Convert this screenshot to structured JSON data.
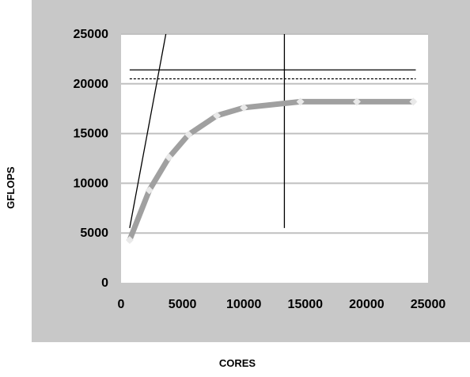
{
  "chart_data": {
    "type": "line",
    "title": "",
    "xlabel": "CORES",
    "ylabel": "GFLOPS",
    "xlim": [
      0,
      25000
    ],
    "ylim": [
      0,
      25000
    ],
    "x_ticks": [
      0,
      5000,
      10000,
      15000,
      20000,
      25000
    ],
    "y_ticks": [
      0,
      5000,
      10000,
      15000,
      20000,
      25000
    ],
    "grid": "horizontal",
    "legend": "none",
    "colors": {
      "outer_background": "#c8c8c8",
      "plot_background": "#ffffff",
      "gridline": "#c0c0c0",
      "series_line": "#a0a0a0",
      "marker": "#e9e9e9",
      "reference_line": "#000000"
    },
    "series": [
      {
        "style": "thick-gray-line-with-diamond-markers",
        "x": [
          700,
          2300,
          3900,
          5500,
          7800,
          10000,
          14600,
          19200,
          23800
        ],
        "y": [
          4300,
          9300,
          12600,
          14900,
          16800,
          17600,
          18200,
          18200,
          18200
        ]
      }
    ],
    "reference_lines": [
      {
        "style": "solid",
        "x": [
          700,
          3800
        ],
        "y": [
          5500,
          26000
        ]
      },
      {
        "style": "solid",
        "x": [
          13300,
          13300
        ],
        "y": [
          5500,
          26000
        ]
      },
      {
        "style": "solid",
        "x": [
          700,
          24000
        ],
        "y": [
          21400,
          21400
        ]
      },
      {
        "style": "dotted",
        "x": [
          700,
          24000
        ],
        "y": [
          20500,
          20500
        ]
      }
    ]
  }
}
